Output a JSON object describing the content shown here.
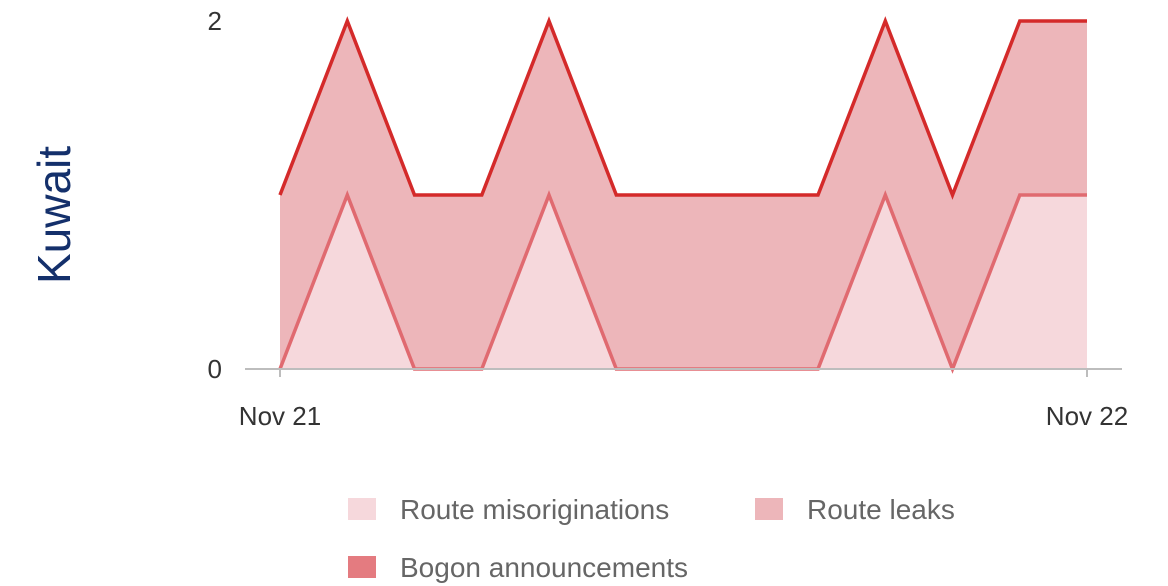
{
  "label": "Kuwait",
  "chart_data": {
    "type": "area",
    "stacked": true,
    "x_tick_labels": [
      "Nov 21",
      "Nov 22"
    ],
    "y_ticks": [
      0,
      2
    ],
    "ylim": [
      0,
      2
    ],
    "x": [
      0,
      1,
      2,
      3,
      4,
      5,
      6,
      7,
      8,
      9,
      10,
      11,
      12
    ],
    "series": [
      {
        "name": "Route misoriginations",
        "values": [
          0,
          1,
          0,
          0,
          1,
          0,
          0,
          0,
          0,
          1,
          0,
          1,
          1
        ],
        "fill": "#f6d8dc",
        "stroke": "#e06a70"
      },
      {
        "name": "Route leaks",
        "values": [
          1,
          1,
          1,
          1,
          1,
          1,
          1,
          1,
          1,
          1,
          1,
          1,
          1
        ],
        "fill": "#edb6ba",
        "stroke": "#d42a2a"
      },
      {
        "name": "Bogon announcements",
        "values": [
          0,
          0,
          0,
          0,
          0,
          0,
          0,
          0,
          0,
          0,
          0,
          0,
          0
        ],
        "fill": "#e47b80",
        "stroke": "#d42a2a"
      }
    ],
    "x_labels_raw": [
      0,
      1,
      2,
      3,
      4,
      5,
      6,
      7,
      8,
      9,
      10,
      11,
      12
    ],
    "grid": false,
    "legend_position": "bottom"
  }
}
